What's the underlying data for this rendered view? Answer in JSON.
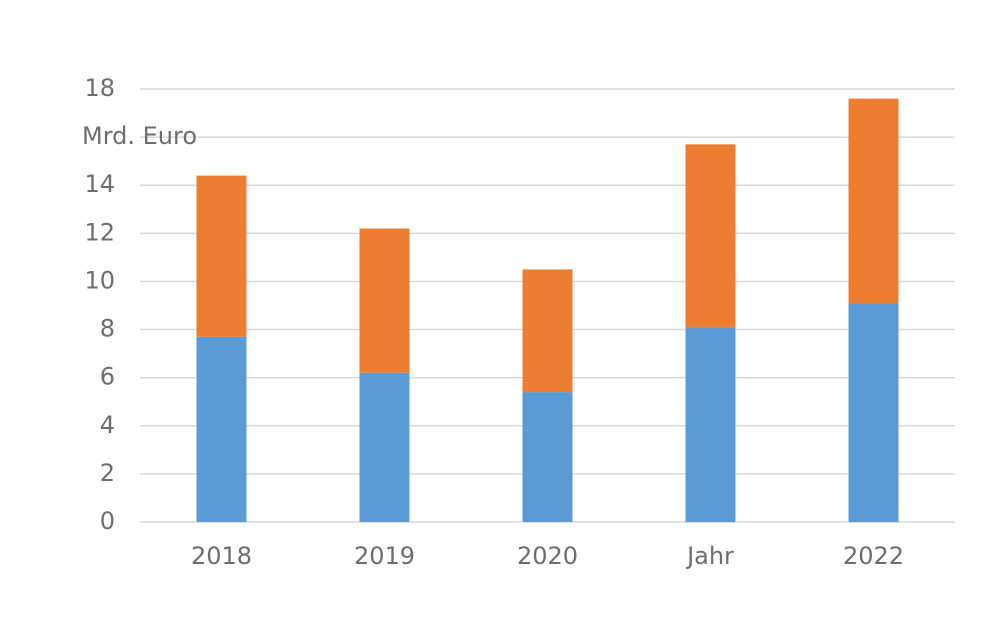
{
  "chart_data": {
    "type": "stacked_bar",
    "categories": [
      "2018",
      "2019",
      "2020",
      "Jahr",
      "2022"
    ],
    "series": [
      {
        "color": "#5b9bd5",
        "values": [
          7.7,
          6.2,
          5.4,
          8.1,
          9.1
        ]
      },
      {
        "color": "#ed7d31",
        "values": [
          6.7,
          6.0,
          5.1,
          7.6,
          8.5
        ]
      }
    ],
    "ylim": [
      0,
      18
    ],
    "yticks": [
      0,
      2,
      4,
      6,
      8,
      10,
      12,
      14,
      {
        "value": 16,
        "label": "Mrd. Euro"
      },
      18
    ],
    "grid": true
  }
}
